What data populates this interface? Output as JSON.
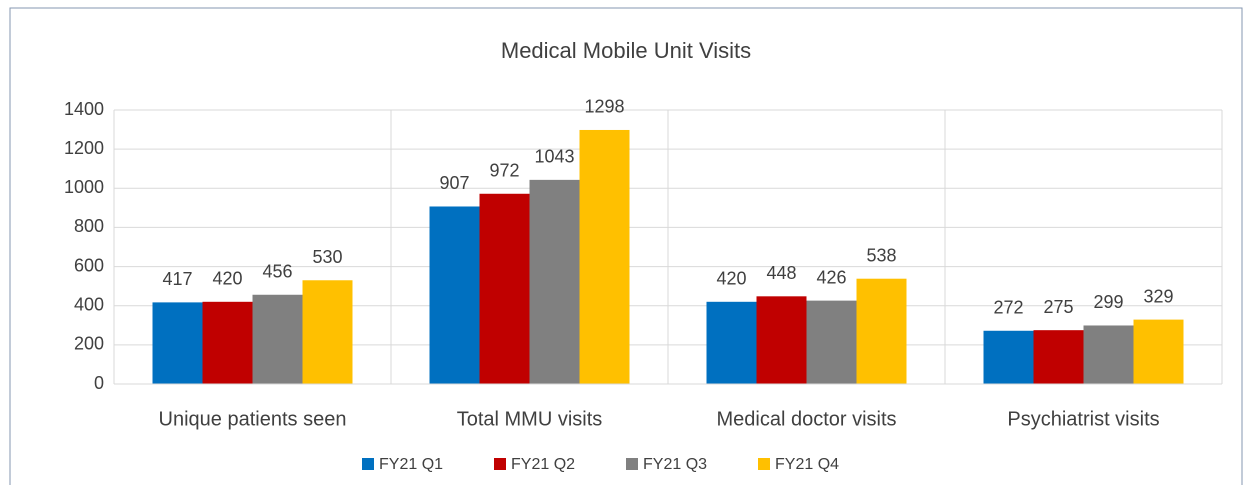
{
  "chart_data": {
    "type": "bar",
    "title": "Medical Mobile Unit Visits",
    "categories": [
      "Unique patients seen",
      "Total MMU visits",
      "Medical doctor visits",
      "Psychiatrist visits"
    ],
    "series": [
      {
        "name": "FY21 Q1",
        "color": "#0070c0",
        "values": [
          417,
          907,
          420,
          272
        ]
      },
      {
        "name": "FY21 Q2",
        "color": "#c00000",
        "values": [
          420,
          972,
          448,
          275
        ]
      },
      {
        "name": "FY21 Q3",
        "color": "#808080",
        "values": [
          456,
          1043,
          426,
          299
        ]
      },
      {
        "name": "FY21 Q4",
        "color": "#ffc000",
        "values": [
          530,
          1298,
          538,
          329
        ]
      }
    ],
    "ylim": [
      0,
      1400
    ],
    "yticks": [
      0,
      200,
      400,
      600,
      800,
      1000,
      1200,
      1400
    ],
    "grid": true,
    "legend": "bottom"
  }
}
